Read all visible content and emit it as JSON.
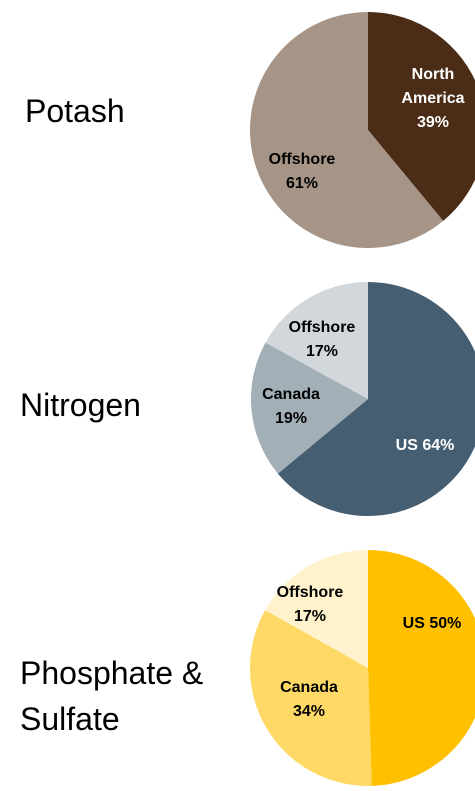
{
  "chart_data": [
    {
      "type": "pie",
      "title": "Potash",
      "categories": [
        "North America",
        "Offshore"
      ],
      "values": [
        39,
        61
      ],
      "value_labels": [
        "39%",
        "61%"
      ],
      "colors": [
        "#4a2c17",
        "#a69587"
      ]
    },
    {
      "type": "pie",
      "title": "Nitrogen",
      "categories": [
        "US",
        "Canada",
        "Offshore"
      ],
      "values": [
        64,
        19,
        17
      ],
      "value_labels": [
        "64%",
        "19%",
        "17%"
      ],
      "colors": [
        "#465e72",
        "#a3afb7",
        "#d1d7db"
      ]
    },
    {
      "type": "pie",
      "title": "Phosphate & Sulfate",
      "categories": [
        "US",
        "Canada",
        "Offshore"
      ],
      "values": [
        50,
        34,
        17
      ],
      "value_labels": [
        "50%",
        "34%",
        "17%"
      ],
      "colors": [
        "#ffc000",
        "#ffd966",
        "#fff2cc"
      ]
    }
  ]
}
